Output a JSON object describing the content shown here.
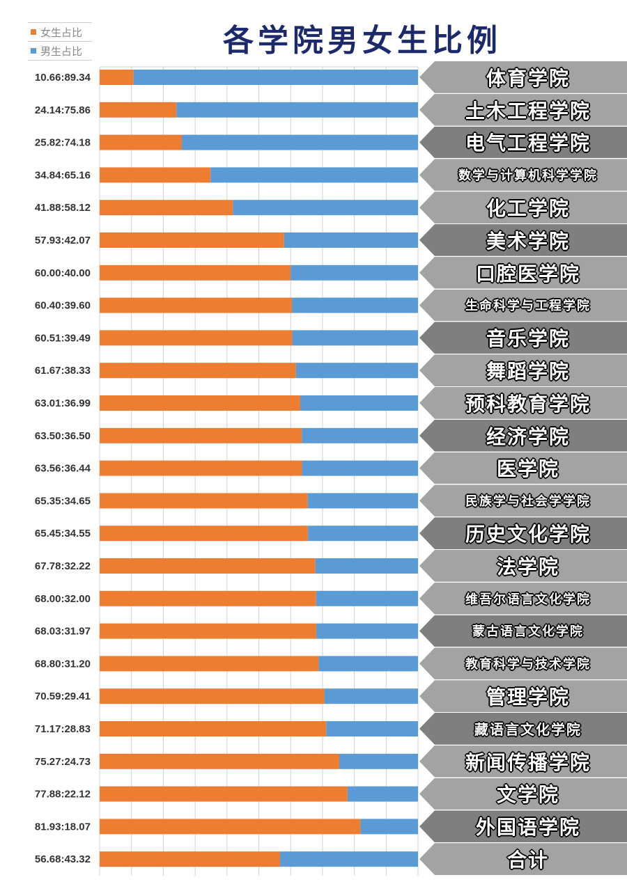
{
  "chart_data": {
    "type": "bar",
    "stacked": true,
    "orientation": "horizontal",
    "title": "各学院男女生比例",
    "xlim": [
      0,
      100
    ],
    "grid": true,
    "legend_placement": "top-left",
    "series": [
      {
        "name": "女生占比",
        "color": "#ed7d31",
        "values": [
          10.66,
          24.14,
          25.82,
          34.84,
          41.88,
          57.93,
          60.0,
          60.4,
          60.51,
          61.67,
          63.01,
          63.5,
          63.56,
          65.35,
          65.45,
          67.78,
          68.0,
          68.03,
          68.8,
          70.59,
          71.17,
          75.27,
          77.88,
          81.93,
          56.68
        ]
      },
      {
        "name": "男生占比",
        "color": "#5b9bd5",
        "values": [
          89.34,
          75.86,
          74.18,
          65.16,
          58.12,
          42.07,
          40.0,
          39.6,
          39.49,
          38.33,
          36.99,
          36.5,
          36.44,
          34.65,
          34.55,
          32.22,
          32.0,
          31.97,
          31.2,
          29.41,
          28.83,
          24.73,
          22.12,
          18.07,
          43.32
        ]
      }
    ],
    "ratio_labels": [
      "10.66:89.34",
      "24.14:75.86",
      "25.82:74.18",
      "34.84:65.16",
      "41.88:58.12",
      "57.93:42.07",
      "60.00:40.00",
      "60.40:39.60",
      "60.51:39.49",
      "61.67:38.33",
      "63.01:36.99",
      "63.50:36.50",
      "63.56:36.44",
      "65.35:34.65",
      "65.45:34.55",
      "67.78:32.22",
      "68.00:32.00",
      "68.03:31.97",
      "68.80:31.20",
      "70.59:29.41",
      "71.17:28.83",
      "75.27:24.73",
      "77.88:22.12",
      "81.93:18.07",
      "56.68:43.32"
    ],
    "categories": [
      "体育学院",
      "土木工程学院",
      "电气工程学院",
      "数学与计算机科学学院",
      "化工学院",
      "美术学院",
      "口腔医学院",
      "生命科学与工程学院",
      "音乐学院",
      "舞蹈学院",
      "预科教育学院",
      "经济学院",
      "医学院",
      "民族学与社会学学院",
      "历史文化学院",
      "法学院",
      "维吾尔语言文化学院",
      "蒙古语言文化学院",
      "教育科学与技术学院",
      "管理学院",
      "藏语言文化学院",
      "新闻传播学院",
      "文学院",
      "外国语学院",
      "合计"
    ]
  }
}
